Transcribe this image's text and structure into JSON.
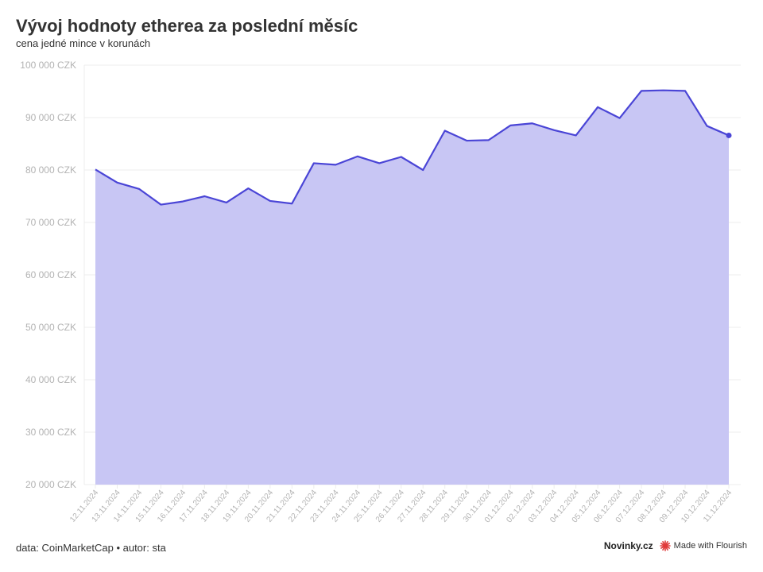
{
  "header": {
    "title": "Vývoj hodnoty etherea za poslední měsíc",
    "subtitle": "cena jedné mince v korunách"
  },
  "footer": {
    "source": "data: CoinMarketCap • autor: sta",
    "brand": "Novinky.cz",
    "flourish_label": "Made with Flourish",
    "flourish_icon": "flourish-logo-icon"
  },
  "colors": {
    "line": "#4a45d6",
    "area": "#c8c6f4",
    "grid": "#ececec",
    "tick": "#b3b3b3",
    "flourish": "#e03a3a"
  },
  "chart_data": {
    "type": "area",
    "title": "Vývoj hodnoty etherea za poslední měsíc",
    "subtitle": "cena jedné mince v korunách",
    "xlabel": "",
    "ylabel": "",
    "ylim": [
      20000,
      100000
    ],
    "yticks": [
      20000,
      30000,
      40000,
      50000,
      60000,
      70000,
      80000,
      90000,
      100000
    ],
    "ytick_labels": [
      "20 000 CZK",
      "30 000 CZK",
      "40 000 CZK",
      "50 000 CZK",
      "60 000 CZK",
      "70 000 CZK",
      "80 000 CZK",
      "90 000 CZK",
      "100 000 CZK"
    ],
    "grid": true,
    "legend": "none",
    "categories": [
      "12.11.2024",
      "13.11.2024",
      "14.11.2024",
      "15.11.2024",
      "16.11.2024",
      "17.11.2024",
      "18.11.2024",
      "19.11.2024",
      "20.11.2024",
      "21.11.2024",
      "22.11.2024",
      "23.11.2024",
      "24.11.2024",
      "25.11.2024",
      "26.11.2024",
      "27.11.2024",
      "28.11.2024",
      "29.11.2024",
      "30.11.2024",
      "01.12.2024",
      "02.12.2024",
      "03.12.2024",
      "04.12.2024",
      "05.12.2024",
      "06.12.2024",
      "07.12.2024",
      "08.12.2024",
      "09.12.2024",
      "10.12.2024",
      "11.12.2024"
    ],
    "series": [
      {
        "values": [
          80100,
          77600,
          76400,
          73400,
          74000,
          75000,
          73800,
          76500,
          74100,
          73600,
          81300,
          81000,
          82600,
          81300,
          82500,
          80000,
          87500,
          85600,
          85700,
          88500,
          88900,
          87600,
          86600,
          92000,
          89900,
          95100,
          95200,
          95100,
          88400,
          86600
        ]
      }
    ]
  }
}
